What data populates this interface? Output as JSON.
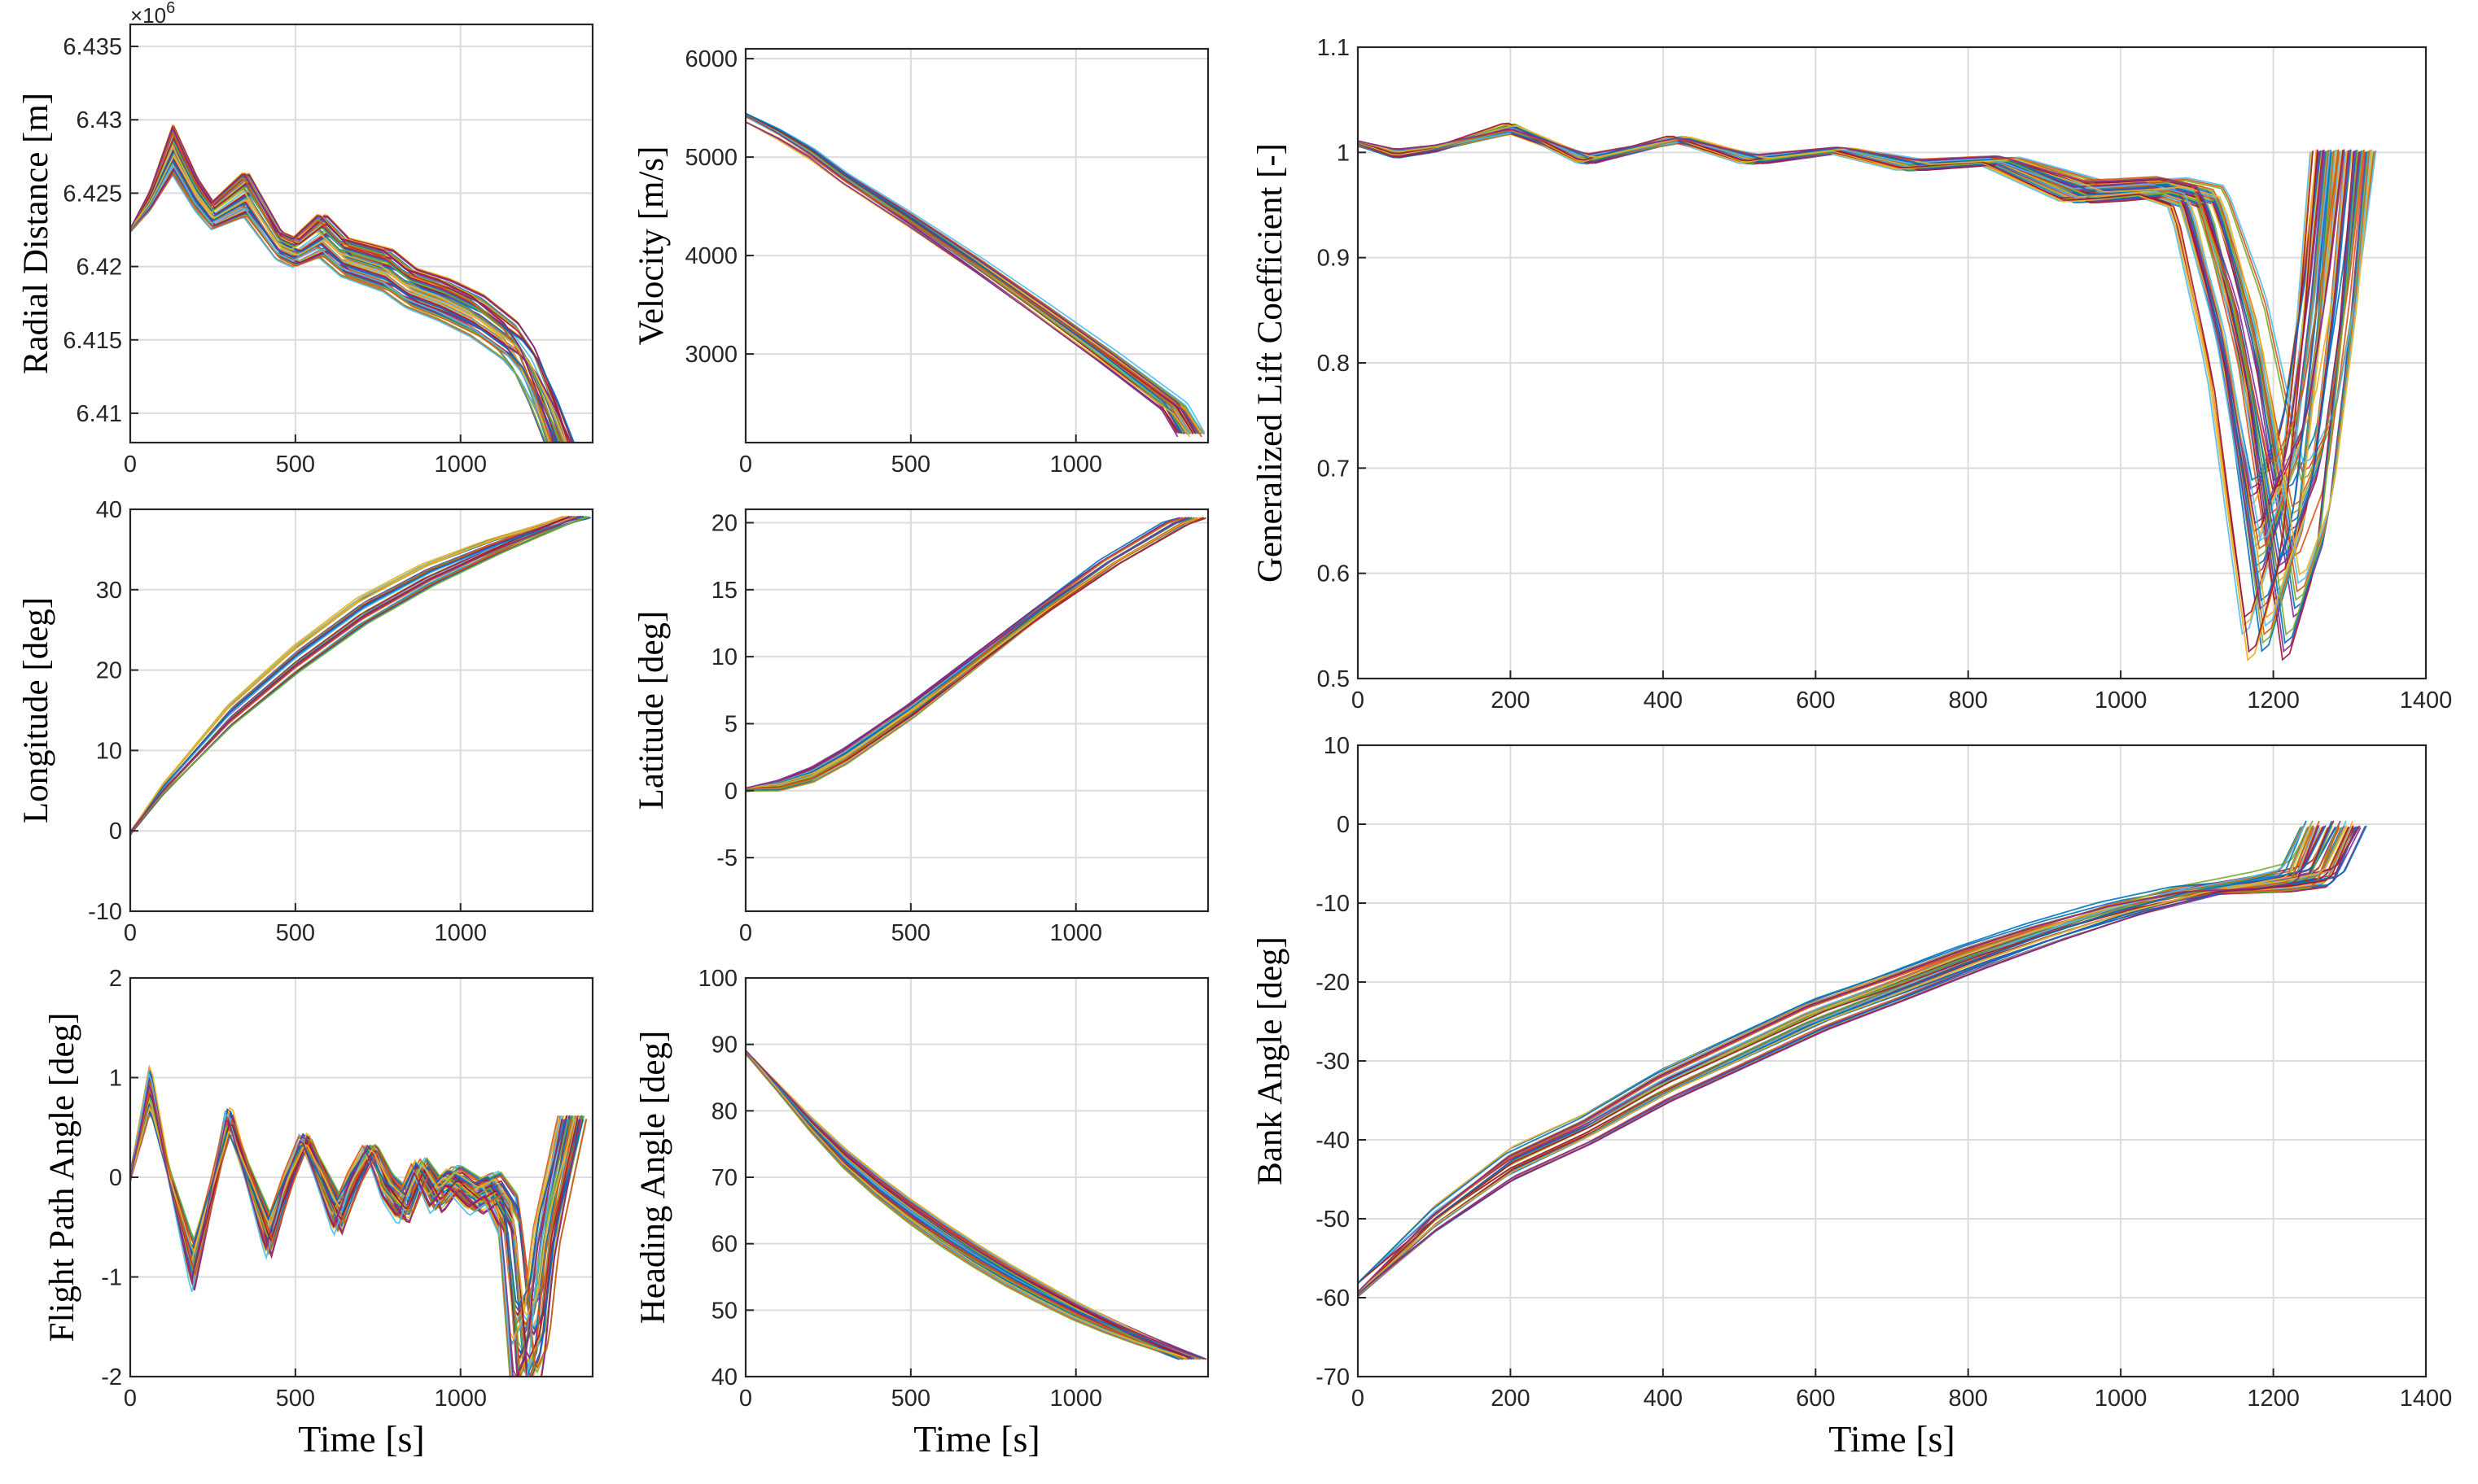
{
  "chart_data": [
    {
      "type": "line",
      "ylabel": "Radial Distance [m]",
      "xlabel": "",
      "xlim": [
        0,
        1400
      ],
      "ylim": [
        6408000,
        6436500
      ],
      "xticks": [
        0,
        500,
        1000
      ],
      "yticks": [
        6410000,
        6415000,
        6420000,
        6425000,
        6430000,
        6435000
      ],
      "yticklabels": [
        "6.41",
        "6.415",
        "6.42",
        "6.425",
        "6.43",
        "6.435"
      ],
      "exponent_base": "×10",
      "exponent_power": "6",
      "grid": true,
      "series_count": 60,
      "nominal": {
        "x": [
          0,
          60,
          130,
          200,
          250,
          350,
          450,
          500,
          580,
          650,
          780,
          850,
          950,
          1050,
          1150,
          1200,
          1250,
          1300
        ],
        "y": [
          6422500,
          6424500,
          6428000,
          6425000,
          6423500,
          6425000,
          6421500,
          6421000,
          6422200,
          6420700,
          6419800,
          6418600,
          6417800,
          6416700,
          6415000,
          6413500,
          6411000,
          6408000
        ]
      }
    },
    {
      "type": "line",
      "ylabel": "Velocity [m/s]",
      "xlabel": "",
      "xlim": [
        0,
        1400
      ],
      "ylim": [
        2100,
        6100
      ],
      "xticks": [
        0,
        500,
        1000
      ],
      "yticks": [
        3000,
        4000,
        5000,
        6000
      ],
      "yticklabels": [
        "3000",
        "4000",
        "5000",
        "6000"
      ],
      "grid": true,
      "series_count": 60,
      "nominal": {
        "x": [
          0,
          100,
          200,
          300,
          500,
          700,
          900,
          1100,
          1300,
          1350
        ],
        "y": [
          5400,
          5230,
          5030,
          4780,
          4350,
          3900,
          3430,
          2950,
          2450,
          2180
        ]
      }
    },
    {
      "type": "line",
      "ylabel": "Longitude [deg]",
      "xlabel": "",
      "xlim": [
        0,
        1400
      ],
      "ylim": [
        -10,
        40
      ],
      "xticks": [
        0,
        500,
        1000
      ],
      "yticks": [
        -10,
        0,
        10,
        20,
        30,
        40
      ],
      "yticklabels": [
        "-10",
        "0",
        "10",
        "20",
        "30",
        "40"
      ],
      "grid": true,
      "series_count": 60,
      "nominal": {
        "x": [
          0,
          100,
          300,
          500,
          700,
          900,
          1100,
          1300,
          1350
        ],
        "y": [
          0,
          5.5,
          14.5,
          21.5,
          27.5,
          32,
          35.5,
          38.5,
          39.2
        ]
      }
    },
    {
      "type": "line",
      "ylabel": "Latitude [deg]",
      "xlabel": "",
      "xlim": [
        0,
        1400
      ],
      "ylim": [
        -9,
        21
      ],
      "xticks": [
        0,
        500,
        1000
      ],
      "yticks": [
        -5,
        0,
        5,
        10,
        15,
        20
      ],
      "yticklabels": [
        "-5",
        "0",
        "5",
        "10",
        "15",
        "20"
      ],
      "grid": true,
      "series_count": 60,
      "nominal": {
        "x": [
          0,
          100,
          200,
          300,
          500,
          700,
          900,
          1100,
          1300,
          1350
        ],
        "y": [
          0,
          0.3,
          1.1,
          2.5,
          5.9,
          9.7,
          13.5,
          17.0,
          19.9,
          20.3
        ]
      }
    },
    {
      "type": "line",
      "ylabel": "Flight Path Angle [deg]",
      "xlabel": "Time [s]",
      "xlim": [
        0,
        1400
      ],
      "ylim": [
        -2,
        2
      ],
      "xticks": [
        0,
        500,
        1000
      ],
      "yticks": [
        -2,
        -1,
        0,
        1,
        2
      ],
      "yticklabels": [
        "-2",
        "-1",
        "0",
        "1",
        "2"
      ],
      "grid": true,
      "series_count": 60,
      "nominal": {
        "x": [
          0,
          60,
          120,
          190,
          250,
          300,
          360,
          420,
          480,
          530,
          580,
          630,
          680,
          730,
          780,
          830,
          880,
          930,
          980,
          1050,
          1100,
          1150,
          1190,
          1230,
          1260,
          1300,
          1340
        ],
        "y": [
          0,
          0.9,
          0.0,
          -0.9,
          -0.1,
          0.6,
          0.0,
          -0.6,
          0.0,
          0.4,
          0.0,
          -0.4,
          0.0,
          0.3,
          -0.1,
          -0.3,
          0.1,
          -0.2,
          0.0,
          -0.2,
          -0.1,
          -0.4,
          -1.8,
          -1.5,
          -0.6,
          0.0,
          0.6
        ]
      }
    },
    {
      "type": "line",
      "ylabel": "Heading Angle [deg]",
      "xlabel": "Time [s]",
      "xlim": [
        0,
        1400
      ],
      "ylim": [
        40,
        100
      ],
      "xticks": [
        0,
        500,
        1000
      ],
      "yticks": [
        40,
        50,
        60,
        70,
        80,
        90,
        100
      ],
      "yticklabels": [
        "40",
        "50",
        "60",
        "70",
        "80",
        "90",
        "100"
      ],
      "grid": true,
      "series_count": 60,
      "nominal": {
        "x": [
          0,
          100,
          200,
          300,
          400,
          500,
          600,
          700,
          800,
          900,
          1000,
          1100,
          1200,
          1300,
          1350
        ],
        "y": [
          89,
          83.5,
          78,
          73,
          68.8,
          65,
          61.5,
          58.3,
          55.3,
          52.6,
          50.0,
          47.7,
          45.6,
          43.7,
          42.8
        ]
      }
    },
    {
      "type": "line",
      "ylabel": "Generalized Lift Coefficient [-]",
      "xlabel": "",
      "xlim": [
        0,
        1400
      ],
      "ylim": [
        0.5,
        1.1
      ],
      "xticks": [
        0,
        200,
        400,
        600,
        800,
        1000,
        1200,
        1400
      ],
      "yticks": [
        0.5,
        0.6,
        0.7,
        0.8,
        0.9,
        1.0,
        1.1
      ],
      "yticklabels": [
        "0.5",
        "0.6",
        "0.7",
        "0.8",
        "0.9",
        "1",
        "1.1"
      ],
      "grid": true,
      "series_count": 60,
      "nominal": {
        "x": [
          0,
          50,
          100,
          200,
          300,
          420,
          520,
          630,
          730,
          840,
          950,
          1000,
          1050,
          1100,
          1150,
          1200,
          1240,
          1270,
          1290
        ],
        "y": [
          1.005,
          0.995,
          1.0,
          1.02,
          0.99,
          1.01,
          0.99,
          1.0,
          0.985,
          0.99,
          0.96,
          0.962,
          0.965,
          0.955,
          0.82,
          0.6,
          0.68,
          0.85,
          1.0
        ]
      }
    },
    {
      "type": "line",
      "ylabel": "Bank Angle [deg]",
      "xlabel": "Time [s]",
      "xlim": [
        0,
        1400
      ],
      "ylim": [
        -70,
        10
      ],
      "xticks": [
        0,
        200,
        400,
        600,
        800,
        1000,
        1200,
        1400
      ],
      "yticks": [
        -70,
        -60,
        -50,
        -40,
        -30,
        -20,
        -10,
        0,
        10
      ],
      "yticklabels": [
        "-70",
        "-60",
        "-50",
        "-40",
        "-30",
        "-20",
        "-10",
        "0",
        "10"
      ],
      "grid": true,
      "series_count": 60,
      "nominal": {
        "x": [
          0,
          100,
          200,
          300,
          400,
          500,
          600,
          700,
          800,
          900,
          1000,
          1100,
          1150,
          1200,
          1250,
          1280
        ],
        "y": [
          -59,
          -50,
          -43,
          -38.5,
          -33,
          -28.5,
          -24,
          -20.5,
          -16.8,
          -13.5,
          -10.6,
          -8.4,
          -7.9,
          -7.4,
          -6.5,
          0
        ]
      }
    }
  ],
  "colors": [
    "#0072BD",
    "#D95319",
    "#EDB120",
    "#7E2F8E",
    "#77AC30",
    "#4DBEEE",
    "#A2142F"
  ]
}
